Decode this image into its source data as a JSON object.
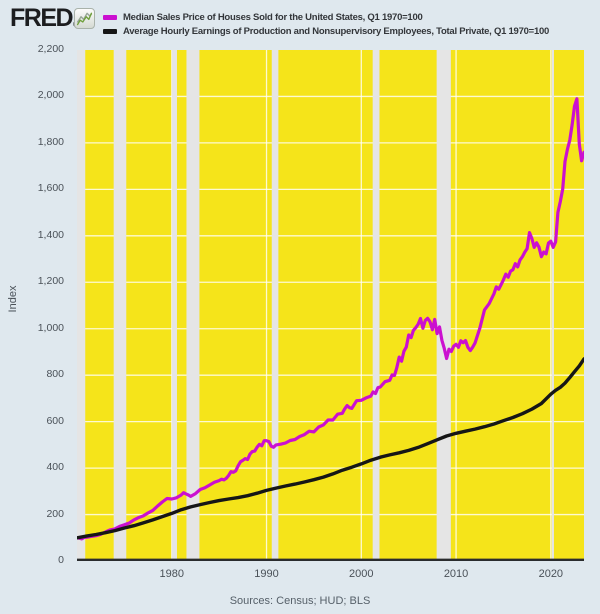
{
  "header": {
    "logo_text": "FRED",
    "registered_mark": "®"
  },
  "footer": {
    "sources_text": "Sources: Census; HUD; BLS"
  },
  "chart_data": {
    "type": "line",
    "title": "",
    "xlabel": "",
    "ylabel": "Index",
    "xlim": [
      1970,
      2023.5
    ],
    "ylim": [
      0,
      2200
    ],
    "grid": "on",
    "legend_position": "top-left",
    "plot_bg": "#f5e41a",
    "recession_band_color": "#e5e5e5",
    "gridline_color": "#ffffff",
    "axis_line_color": "#2a2c2e",
    "y_ticks": [
      {
        "value": 0,
        "label": "0"
      },
      {
        "value": 200,
        "label": "200"
      },
      {
        "value": 400,
        "label": "400"
      },
      {
        "value": 600,
        "label": "600"
      },
      {
        "value": 800,
        "label": "800"
      },
      {
        "value": 1000,
        "label": "1,000"
      },
      {
        "value": 1200,
        "label": "1,200"
      },
      {
        "value": 1400,
        "label": "1,400"
      },
      {
        "value": 1600,
        "label": "1,600"
      },
      {
        "value": 1800,
        "label": "1,800"
      },
      {
        "value": 2000,
        "label": "2,000"
      },
      {
        "value": 2200,
        "label": "2,200"
      }
    ],
    "x_ticks": [
      {
        "value": 1980,
        "label": "1980"
      },
      {
        "value": 1990,
        "label": "1990"
      },
      {
        "value": 2000,
        "label": "2000"
      },
      {
        "value": 2010,
        "label": "2010"
      },
      {
        "value": 2020,
        "label": "2020"
      }
    ],
    "recessions": [
      [
        1970.0,
        1970.87
      ],
      [
        1973.87,
        1975.2
      ],
      [
        1980.0,
        1980.55
      ],
      [
        1981.55,
        1982.92
      ],
      [
        1990.55,
        1991.25
      ],
      [
        2001.2,
        2001.92
      ],
      [
        2007.95,
        2009.45
      ],
      [
        2020.1,
        2020.33
      ]
    ],
    "series": [
      {
        "name": "Median Sales Price of Houses Sold for the United States, Q1 1970=100",
        "color": "#cb10d0",
        "width": 3.2,
        "points": [
          [
            1970.0,
            100
          ],
          [
            1970.25,
            98
          ],
          [
            1970.5,
            95
          ],
          [
            1970.75,
            101
          ],
          [
            1971.0,
            102
          ],
          [
            1971.5,
            106
          ],
          [
            1972.0,
            109
          ],
          [
            1972.5,
            115
          ],
          [
            1973.0,
            125
          ],
          [
            1973.5,
            134
          ],
          [
            1974.0,
            138
          ],
          [
            1974.5,
            149
          ],
          [
            1975.0,
            156
          ],
          [
            1975.5,
            163
          ],
          [
            1976.0,
            177
          ],
          [
            1976.5,
            187
          ],
          [
            1977.0,
            194
          ],
          [
            1977.5,
            207
          ],
          [
            1978.0,
            218
          ],
          [
            1978.5,
            237
          ],
          [
            1979.0,
            254
          ],
          [
            1979.5,
            269
          ],
          [
            1980.0,
            267
          ],
          [
            1980.5,
            272
          ],
          [
            1981.0,
            284
          ],
          [
            1981.25,
            294
          ],
          [
            1981.5,
            289
          ],
          [
            1981.75,
            284
          ],
          [
            1982.0,
            278
          ],
          [
            1982.5,
            290
          ],
          [
            1983.0,
            308
          ],
          [
            1983.5,
            315
          ],
          [
            1984.0,
            327
          ],
          [
            1984.5,
            339
          ],
          [
            1985.0,
            346
          ],
          [
            1985.25,
            352
          ],
          [
            1985.5,
            349
          ],
          [
            1985.75,
            356
          ],
          [
            1986.0,
            368
          ],
          [
            1986.25,
            385
          ],
          [
            1986.5,
            382
          ],
          [
            1986.75,
            388
          ],
          [
            1987.0,
            410
          ],
          [
            1987.25,
            427
          ],
          [
            1987.5,
            433
          ],
          [
            1987.75,
            441
          ],
          [
            1988.0,
            437
          ],
          [
            1988.25,
            460
          ],
          [
            1988.5,
            471
          ],
          [
            1988.75,
            473
          ],
          [
            1989.0,
            490
          ],
          [
            1989.25,
            502
          ],
          [
            1989.5,
            496
          ],
          [
            1989.75,
            518
          ],
          [
            1990.0,
            518
          ],
          [
            1990.25,
            514
          ],
          [
            1990.5,
            494
          ],
          [
            1990.75,
            490
          ],
          [
            1991.0,
            500
          ],
          [
            1991.5,
            503
          ],
          [
            1992.0,
            508
          ],
          [
            1992.5,
            519
          ],
          [
            1993.0,
            523
          ],
          [
            1993.5,
            536
          ],
          [
            1994.0,
            544
          ],
          [
            1994.5,
            559
          ],
          [
            1995.0,
            556
          ],
          [
            1995.5,
            577
          ],
          [
            1996.0,
            586
          ],
          [
            1996.5,
            607
          ],
          [
            1997.0,
            607
          ],
          [
            1997.5,
            632
          ],
          [
            1998.0,
            636
          ],
          [
            1998.25,
            655
          ],
          [
            1998.5,
            669
          ],
          [
            1998.75,
            660
          ],
          [
            1999.0,
            657
          ],
          [
            1999.5,
            690
          ],
          [
            2000.0,
            692
          ],
          [
            2000.5,
            702
          ],
          [
            2001.0,
            710
          ],
          [
            2001.25,
            728
          ],
          [
            2001.5,
            721
          ],
          [
            2001.75,
            746
          ],
          [
            2002.0,
            749
          ],
          [
            2002.5,
            772
          ],
          [
            2003.0,
            778
          ],
          [
            2003.25,
            801
          ],
          [
            2003.5,
            799
          ],
          [
            2003.75,
            832
          ],
          [
            2004.0,
            878
          ],
          [
            2004.25,
            860
          ],
          [
            2004.5,
            903
          ],
          [
            2004.75,
            921
          ],
          [
            2005.0,
            973
          ],
          [
            2005.25,
            962
          ],
          [
            2005.5,
            993
          ],
          [
            2005.75,
            1005
          ],
          [
            2006.0,
            1020
          ],
          [
            2006.25,
            1044
          ],
          [
            2006.5,
            1002
          ],
          [
            2006.75,
            1036
          ],
          [
            2007.0,
            1045
          ],
          [
            2007.25,
            1030
          ],
          [
            2007.5,
            996
          ],
          [
            2007.75,
            1040
          ],
          [
            2008.0,
            979
          ],
          [
            2008.25,
            1008
          ],
          [
            2008.5,
            950
          ],
          [
            2008.75,
            916
          ],
          [
            2009.0,
            872
          ],
          [
            2009.25,
            912
          ],
          [
            2009.5,
            902
          ],
          [
            2009.75,
            925
          ],
          [
            2010.0,
            933
          ],
          [
            2010.25,
            920
          ],
          [
            2010.5,
            948
          ],
          [
            2010.75,
            940
          ],
          [
            2011.0,
            949
          ],
          [
            2011.25,
            920
          ],
          [
            2011.5,
            906
          ],
          [
            2011.75,
            920
          ],
          [
            2012.0,
            938
          ],
          [
            2012.5,
            1002
          ],
          [
            2013.0,
            1081
          ],
          [
            2013.5,
            1108
          ],
          [
            2014.0,
            1151
          ],
          [
            2014.25,
            1180
          ],
          [
            2014.5,
            1170
          ],
          [
            2014.75,
            1190
          ],
          [
            2015.0,
            1210
          ],
          [
            2015.25,
            1235
          ],
          [
            2015.5,
            1222
          ],
          [
            2015.75,
            1248
          ],
          [
            2016.0,
            1254
          ],
          [
            2016.25,
            1280
          ],
          [
            2016.5,
            1266
          ],
          [
            2016.75,
            1296
          ],
          [
            2017.0,
            1310
          ],
          [
            2017.25,
            1330
          ],
          [
            2017.5,
            1345
          ],
          [
            2017.75,
            1414
          ],
          [
            2018.0,
            1388
          ],
          [
            2018.25,
            1350
          ],
          [
            2018.5,
            1370
          ],
          [
            2018.75,
            1351
          ],
          [
            2019.0,
            1310
          ],
          [
            2019.25,
            1330
          ],
          [
            2019.5,
            1322
          ],
          [
            2019.75,
            1369
          ],
          [
            2020.0,
            1377
          ],
          [
            2020.25,
            1350
          ],
          [
            2020.5,
            1374
          ],
          [
            2020.75,
            1501
          ],
          [
            2021.0,
            1547
          ],
          [
            2021.25,
            1601
          ],
          [
            2021.5,
            1720
          ],
          [
            2021.75,
            1772
          ],
          [
            2022.0,
            1812
          ],
          [
            2022.25,
            1880
          ],
          [
            2022.5,
            1958
          ],
          [
            2022.75,
            1990
          ],
          [
            2023.0,
            1795
          ],
          [
            2023.25,
            1723
          ],
          [
            2023.5,
            1760
          ]
        ]
      },
      {
        "name": "Average Hourly Earnings of Production and Nonsupervisory Employees, Total Private, Q1 1970=100",
        "color": "#161616",
        "width": 3.4,
        "points": [
          [
            1970,
            100
          ],
          [
            1971,
            107
          ],
          [
            1972,
            114
          ],
          [
            1973,
            122
          ],
          [
            1974,
            131
          ],
          [
            1975,
            142
          ],
          [
            1976,
            152
          ],
          [
            1977,
            164
          ],
          [
            1978,
            177
          ],
          [
            1979,
            191
          ],
          [
            1980,
            205
          ],
          [
            1981,
            221
          ],
          [
            1982,
            233
          ],
          [
            1983,
            243
          ],
          [
            1984,
            252
          ],
          [
            1985,
            260
          ],
          [
            1986,
            267
          ],
          [
            1987,
            273
          ],
          [
            1988,
            281
          ],
          [
            1989,
            292
          ],
          [
            1990,
            304
          ],
          [
            1991,
            314
          ],
          [
            1992,
            323
          ],
          [
            1993,
            331
          ],
          [
            1994,
            340
          ],
          [
            1995,
            350
          ],
          [
            1996,
            361
          ],
          [
            1997,
            375
          ],
          [
            1998,
            391
          ],
          [
            1999,
            404
          ],
          [
            2000,
            418
          ],
          [
            2001,
            434
          ],
          [
            2002,
            447
          ],
          [
            2003,
            457
          ],
          [
            2004,
            466
          ],
          [
            2005,
            476
          ],
          [
            2006,
            489
          ],
          [
            2007,
            505
          ],
          [
            2008,
            522
          ],
          [
            2009,
            538
          ],
          [
            2010,
            550
          ],
          [
            2011,
            559
          ],
          [
            2012,
            568
          ],
          [
            2013,
            578
          ],
          [
            2014,
            590
          ],
          [
            2015,
            604
          ],
          [
            2016,
            618
          ],
          [
            2017,
            634
          ],
          [
            2018,
            654
          ],
          [
            2019,
            678
          ],
          [
            2020,
            718
          ],
          [
            2020.5,
            735
          ],
          [
            2021,
            748
          ],
          [
            2021.5,
            766
          ],
          [
            2022,
            790
          ],
          [
            2022.5,
            815
          ],
          [
            2023,
            840
          ],
          [
            2023.5,
            870
          ]
        ]
      }
    ]
  }
}
